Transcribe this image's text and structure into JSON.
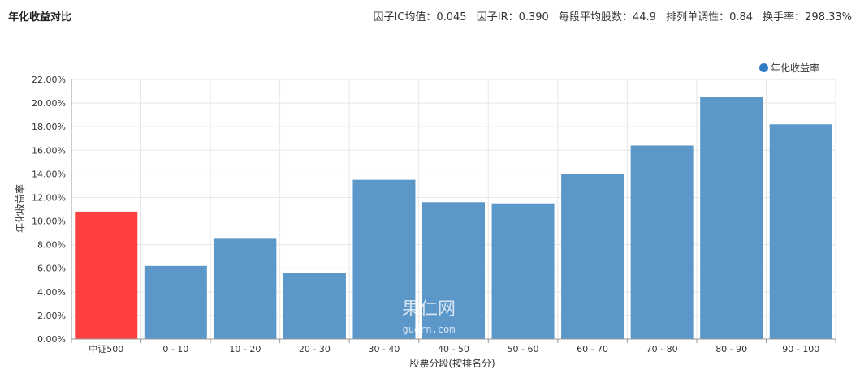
{
  "header": {
    "title": "年化收益对比",
    "stats": [
      "因子IC均值：0.045",
      "因子IR：0.390",
      "每段平均股数：44.9",
      "排列单调性：0.84",
      "换手率：298.33%"
    ]
  },
  "watermark": {
    "line1": "果仁网",
    "line2": "guorn.com"
  },
  "colors": {
    "series": "#5b97c8",
    "highlight": "#ff4040",
    "legend_dot": "#2f7bc6",
    "grid": "#e6e6e6"
  },
  "chart_data": {
    "type": "bar",
    "categories": [
      "中证500",
      "0 - 10",
      "10 - 20",
      "20 - 30",
      "30 - 40",
      "40 - 50",
      "50 - 60",
      "60 - 70",
      "70 - 80",
      "80 - 90",
      "90 - 100"
    ],
    "series": [
      {
        "name": "年化收益率",
        "values": [
          10.8,
          6.2,
          8.5,
          5.6,
          13.5,
          11.6,
          11.5,
          14.0,
          16.4,
          20.5,
          18.2
        ]
      }
    ],
    "highlight_index": 0,
    "xlabel": "股票分段(按排名分)",
    "ylabel": "年化收益率",
    "ylim": [
      0,
      22
    ],
    "yticks": [
      "0.00%",
      "2.00%",
      "4.00%",
      "6.00%",
      "8.00%",
      "10.00%",
      "12.00%",
      "14.00%",
      "16.00%",
      "18.00%",
      "20.00%",
      "22.00%"
    ],
    "grid": true,
    "legend_position": "top-right"
  }
}
